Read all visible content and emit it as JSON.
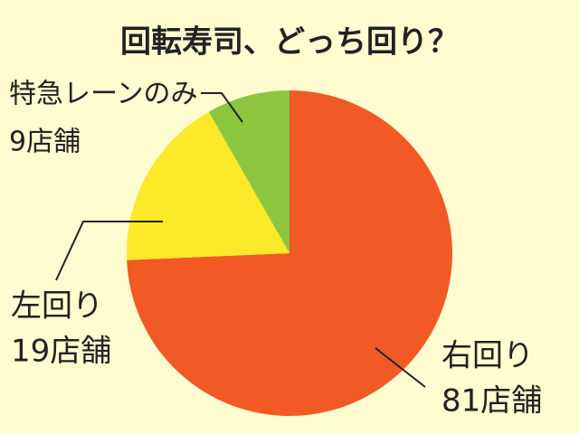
{
  "chart_data": {
    "type": "pie",
    "title": "回転寿司、どっち回り？",
    "categories": [
      "右回り",
      "左回り",
      "特急レーンのみ"
    ],
    "values": [
      81,
      19,
      9
    ],
    "value_labels": [
      "81店舗",
      "19店舗",
      "9店舗"
    ],
    "colors": [
      "#f15a24",
      "#fbe92a",
      "#8cc63f"
    ]
  }
}
